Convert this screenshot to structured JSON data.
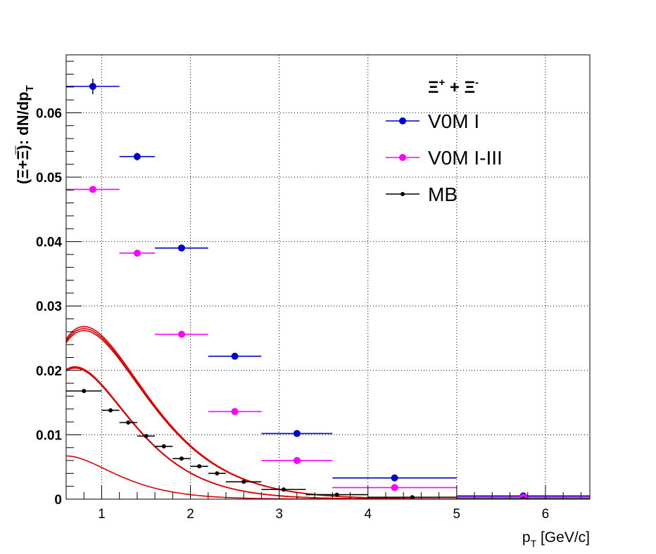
{
  "chart_data": {
    "type": "scatter",
    "title": "",
    "xlabel": {
      "main": "p",
      "sub": "T",
      "rest": " [GeV/c]"
    },
    "ylabel": {
      "main": "(Ξ+Ξ̅): dN/dp",
      "sub": "T"
    },
    "xlim": [
      0.6,
      6.5
    ],
    "ylim": [
      0,
      0.069
    ],
    "x_ticks": [
      1,
      2,
      3,
      4,
      5,
      6
    ],
    "x_tick_labels": [
      "1",
      "2",
      "3",
      "4",
      "5",
      "6"
    ],
    "y_ticks": [
      0,
      0.01,
      0.02,
      0.03,
      0.04,
      0.05,
      0.06
    ],
    "y_tick_labels": [
      "0",
      "0.01",
      "0.02",
      "0.03",
      "0.04",
      "0.05",
      "0.06"
    ],
    "grid": true,
    "legend": {
      "placement": "top-right",
      "header": {
        "a": "Ξ",
        "a_sup": "+",
        "mid": " + ",
        "b": "Ξ",
        "b_sup": "-"
      }
    },
    "series": [
      {
        "name": "V0M I",
        "color": "#0000cc",
        "marker_radius": 5,
        "points": [
          {
            "x": 0.9,
            "xlo": 0.6,
            "xhi": 1.2,
            "y": 0.0641,
            "yerr": 0.0012
          },
          {
            "x": 1.4,
            "xlo": 1.2,
            "xhi": 1.6,
            "y": 0.0532,
            "yerr": 0.0006
          },
          {
            "x": 1.9,
            "xlo": 1.6,
            "xhi": 2.2,
            "y": 0.039,
            "yerr": 0.0003
          },
          {
            "x": 2.5,
            "xlo": 2.2,
            "xhi": 2.8,
            "y": 0.0222,
            "yerr": 0.0002
          },
          {
            "x": 3.2,
            "xlo": 2.8,
            "xhi": 3.6,
            "y": 0.0102,
            "yerr": 0.0002
          },
          {
            "x": 4.3,
            "xlo": 3.6,
            "xhi": 5.0,
            "y": 0.0033,
            "yerr": 0.0001
          },
          {
            "x": 5.75,
            "xlo": 5.0,
            "xhi": 6.5,
            "y": 0.0005,
            "yerr": 0.0001
          }
        ]
      },
      {
        "name": "V0M I-III",
        "color": "#ff00ff",
        "marker_radius": 5,
        "points": [
          {
            "x": 0.9,
            "xlo": 0.6,
            "xhi": 1.2,
            "y": 0.0481,
            "yerr": 0.0005
          },
          {
            "x": 1.4,
            "xlo": 1.2,
            "xhi": 1.6,
            "y": 0.0382,
            "yerr": 0.0003
          },
          {
            "x": 1.9,
            "xlo": 1.6,
            "xhi": 2.2,
            "y": 0.0256,
            "yerr": 0.0002
          },
          {
            "x": 2.5,
            "xlo": 2.2,
            "xhi": 2.8,
            "y": 0.0136,
            "yerr": 0.0002
          },
          {
            "x": 3.2,
            "xlo": 2.8,
            "xhi": 3.6,
            "y": 0.006,
            "yerr": 0.0001
          },
          {
            "x": 4.3,
            "xlo": 3.6,
            "xhi": 5.0,
            "y": 0.0018,
            "yerr": 0.0001
          },
          {
            "x": 5.75,
            "xlo": 5.0,
            "xhi": 6.5,
            "y": 0.0003,
            "yerr": 0.0001
          }
        ]
      },
      {
        "name": "MB",
        "color": "#000000",
        "marker_radius": 3,
        "points": [
          {
            "x": 0.8,
            "xlo": 0.6,
            "xhi": 1.0,
            "y": 0.0168,
            "yerr": 0.0002
          },
          {
            "x": 1.1,
            "xlo": 1.0,
            "xhi": 1.2,
            "y": 0.0138,
            "yerr": 0.0001
          },
          {
            "x": 1.3,
            "xlo": 1.2,
            "xhi": 1.4,
            "y": 0.0119,
            "yerr": 0.0001
          },
          {
            "x": 1.5,
            "xlo": 1.4,
            "xhi": 1.6,
            "y": 0.0098,
            "yerr": 0.0001
          },
          {
            "x": 1.7,
            "xlo": 1.6,
            "xhi": 1.8,
            "y": 0.0082,
            "yerr": 0.0001
          },
          {
            "x": 1.9,
            "xlo": 1.8,
            "xhi": 2.0,
            "y": 0.0063,
            "yerr": 0.0001
          },
          {
            "x": 2.1,
            "xlo": 2.0,
            "xhi": 2.2,
            "y": 0.0051,
            "yerr": 0.0001
          },
          {
            "x": 2.3,
            "xlo": 2.2,
            "xhi": 2.4,
            "y": 0.004,
            "yerr": 0.0001
          },
          {
            "x": 2.6,
            "xlo": 2.4,
            "xhi": 2.8,
            "y": 0.0027,
            "yerr": 0.0001
          },
          {
            "x": 3.05,
            "xlo": 2.8,
            "xhi": 3.3,
            "y": 0.0015,
            "yerr": 0.0001
          },
          {
            "x": 3.65,
            "xlo": 3.3,
            "xhi": 4.0,
            "y": 0.0007,
            "yerr": 0.0001
          },
          {
            "x": 4.5,
            "xlo": 4.0,
            "xhi": 5.0,
            "y": 0.0003,
            "yerr": 0.0001
          },
          {
            "x": 5.75,
            "xlo": 5.0,
            "xhi": 6.5,
            "y": 7e-05,
            "yerr": 3e-05
          }
        ]
      }
    ],
    "fits": [
      {
        "group": "V0M I",
        "color": "#dd0000",
        "curves": [
          {
            "a": 0.3095,
            "T": 0.4
          },
          {
            "a": 0.3058,
            "T": 0.4
          },
          {
            "a": 0.3023,
            "T": 0.4
          }
        ]
      },
      {
        "group": "V0M I-III",
        "color": "#dd0000",
        "curves": [
          {
            "a": 0.3101,
            "T": 0.35
          },
          {
            "a": 0.3085,
            "T": 0.35
          },
          {
            "a": 0.307,
            "T": 0.35
          }
        ]
      },
      {
        "group": "MB",
        "color": "#dd0000",
        "curves": [
          {
            "a": 0.1378,
            "T": 0.3
          }
        ]
      }
    ]
  }
}
